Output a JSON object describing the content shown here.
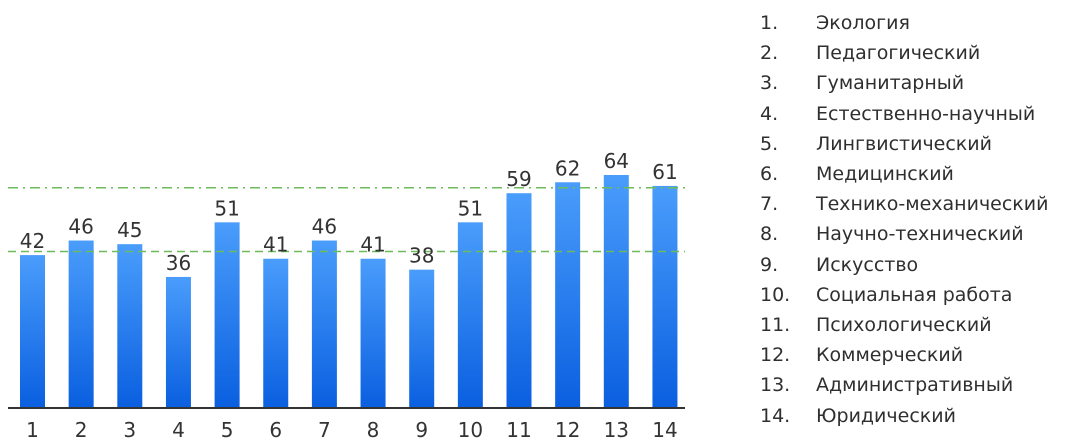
{
  "chart_data": {
    "type": "bar",
    "categories": [
      "1",
      "2",
      "3",
      "4",
      "5",
      "6",
      "7",
      "8",
      "9",
      "10",
      "11",
      "12",
      "13",
      "14"
    ],
    "values": [
      42,
      46,
      45,
      36,
      51,
      41,
      46,
      41,
      38,
      51,
      59,
      62,
      64,
      61
    ],
    "reference_lines": [
      {
        "value": 43,
        "style": "dashed",
        "color": "#6dbb5a"
      },
      {
        "value": 60.5,
        "style": "dash-dot",
        "color": "#6dbb5a"
      }
    ],
    "ylim": [
      0,
      70
    ],
    "grid": false,
    "bar_color_top": "#4a9dfb",
    "bar_color_bottom": "#0a5fe0",
    "legend_position": "right",
    "legend": [
      {
        "num": "1.",
        "label": "Экология"
      },
      {
        "num": "2.",
        "label": "Педагогический"
      },
      {
        "num": "3.",
        "label": "Гуманитарный"
      },
      {
        "num": "4.",
        "label": "Естественно-научный"
      },
      {
        "num": "5.",
        "label": "Лингвистический"
      },
      {
        "num": "6.",
        "label": "Медицинский"
      },
      {
        "num": "7.",
        "label": "Технико-механический"
      },
      {
        "num": "8.",
        "label": "Научно-технический"
      },
      {
        "num": "9.",
        "label": "Искусство"
      },
      {
        "num": "10.",
        "label": "Социальная работа"
      },
      {
        "num": "11.",
        "label": "Психологический"
      },
      {
        "num": "12.",
        "label": "Коммерческий"
      },
      {
        "num": "13.",
        "label": "Административный"
      },
      {
        "num": "14.",
        "label": "Юридический"
      }
    ]
  }
}
